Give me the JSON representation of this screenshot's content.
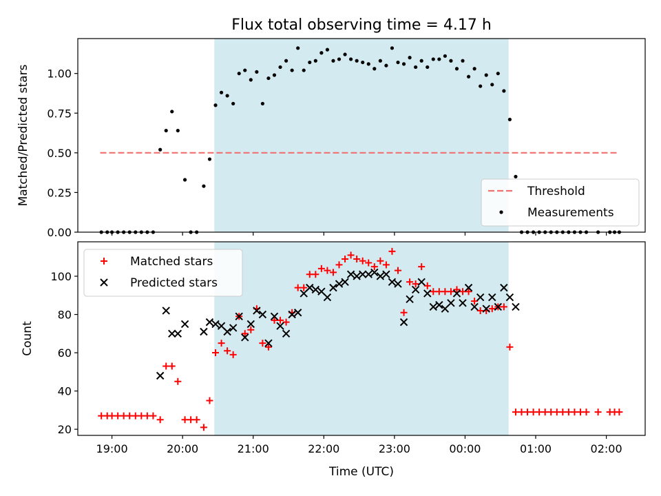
{
  "chart_data": [
    {
      "type": "scatter",
      "title": "Flux total observing time = 4.17 h",
      "xlabel": "",
      "ylabel": "Matched/Predicted stars",
      "xlim": [
        "18:31",
        "02:33"
      ],
      "ylim": [
        0,
        1.22
      ],
      "yticks": [
        "0.00",
        "0.25",
        "0.50",
        "0.75",
        "1.00"
      ],
      "shaded_interval": {
        "start": "20:27",
        "end": "00:37",
        "color": "#d3eaf0"
      },
      "threshold": {
        "name": "Threshold",
        "value": 0.5,
        "x_start": "18:50",
        "x_end": "02:10",
        "color": "#f07070"
      },
      "legend": {
        "position": "lower-right",
        "entries": [
          "Threshold",
          "Measurements"
        ]
      },
      "series": [
        {
          "name": "Measurements",
          "marker": "dot",
          "color": "#000000",
          "points": [
            [
              "18:51",
              0
            ],
            [
              "18:56",
              0
            ],
            [
              "19:00",
              0
            ],
            [
              "19:05",
              0
            ],
            [
              "19:10",
              0
            ],
            [
              "19:15",
              0
            ],
            [
              "19:20",
              0
            ],
            [
              "19:25",
              0
            ],
            [
              "19:30",
              0
            ],
            [
              "19:35",
              0
            ],
            [
              "19:41",
              0.52
            ],
            [
              "19:46",
              0.64
            ],
            [
              "19:51",
              0.76
            ],
            [
              "19:56",
              0.64
            ],
            [
              "20:02",
              0.33
            ],
            [
              "20:07",
              0
            ],
            [
              "20:12",
              0
            ],
            [
              "20:18",
              0.29
            ],
            [
              "20:23",
              0.46
            ],
            [
              "20:28",
              0.8
            ],
            [
              "20:33",
              0.88
            ],
            [
              "20:38",
              0.86
            ],
            [
              "20:43",
              0.81
            ],
            [
              "20:48",
              1.0
            ],
            [
              "20:53",
              1.02
            ],
            [
              "20:58",
              0.96
            ],
            [
              "21:03",
              1.01
            ],
            [
              "21:08",
              0.81
            ],
            [
              "21:13",
              0.97
            ],
            [
              "21:18",
              0.99
            ],
            [
              "21:23",
              1.04
            ],
            [
              "21:28",
              1.08
            ],
            [
              "21:33",
              1.02
            ],
            [
              "21:38",
              1.16
            ],
            [
              "21:43",
              1.02
            ],
            [
              "21:48",
              1.07
            ],
            [
              "21:53",
              1.08
            ],
            [
              "21:58",
              1.13
            ],
            [
              "22:03",
              1.15
            ],
            [
              "22:08",
              1.08
            ],
            [
              "22:13",
              1.09
            ],
            [
              "22:18",
              1.12
            ],
            [
              "22:23",
              1.09
            ],
            [
              "22:28",
              1.08
            ],
            [
              "22:33",
              1.07
            ],
            [
              "22:38",
              1.06
            ],
            [
              "22:43",
              1.03
            ],
            [
              "22:48",
              1.08
            ],
            [
              "22:53",
              1.05
            ],
            [
              "22:58",
              1.16
            ],
            [
              "23:03",
              1.07
            ],
            [
              "23:08",
              1.06
            ],
            [
              "23:13",
              1.1
            ],
            [
              "23:18",
              1.04
            ],
            [
              "23:23",
              1.08
            ],
            [
              "23:28",
              1.04
            ],
            [
              "23:33",
              1.09
            ],
            [
              "23:38",
              1.09
            ],
            [
              "23:43",
              1.11
            ],
            [
              "23:48",
              1.08
            ],
            [
              "23:53",
              1.03
            ],
            [
              "23:58",
              1.08
            ],
            [
              "00:03",
              0.98
            ],
            [
              "00:08",
              1.03
            ],
            [
              "00:13",
              0.92
            ],
            [
              "00:18",
              0.99
            ],
            [
              "00:23",
              0.93
            ],
            [
              "00:28",
              1.0
            ],
            [
              "00:33",
              0.89
            ],
            [
              "00:38",
              0.71
            ],
            [
              "00:43",
              0.35
            ],
            [
              "00:48",
              0
            ],
            [
              "00:53",
              0
            ],
            [
              "00:58",
              0
            ],
            [
              "01:03",
              0
            ],
            [
              "01:08",
              0
            ],
            [
              "01:13",
              0
            ],
            [
              "01:18",
              0
            ],
            [
              "01:23",
              0
            ],
            [
              "01:28",
              0
            ],
            [
              "01:33",
              0
            ],
            [
              "01:38",
              0
            ],
            [
              "01:43",
              0
            ],
            [
              "01:53",
              0
            ],
            [
              "02:03",
              0
            ],
            [
              "02:07",
              0
            ],
            [
              "02:11",
              0
            ]
          ]
        }
      ]
    },
    {
      "type": "scatter",
      "title": "",
      "xlabel": "Time (UTC)",
      "ylabel": "Count",
      "xlim": [
        "18:31",
        "02:33"
      ],
      "ylim": [
        16.8,
        118
      ],
      "yticks": [
        "20",
        "40",
        "60",
        "80",
        "100"
      ],
      "xticks": [
        "19:00",
        "20:00",
        "21:00",
        "22:00",
        "23:00",
        "00:00",
        "01:00",
        "02:00"
      ],
      "shaded_interval": {
        "start": "20:27",
        "end": "00:37",
        "color": "#d3eaf0"
      },
      "legend": {
        "position": "upper-left",
        "entries": [
          "Matched stars",
          "Predicted stars"
        ]
      },
      "series": [
        {
          "name": "Matched stars",
          "marker": "plus",
          "color": "#ff0000",
          "points": [
            [
              "18:51",
              27
            ],
            [
              "18:56",
              27
            ],
            [
              "19:00",
              27
            ],
            [
              "19:05",
              27
            ],
            [
              "19:10",
              27
            ],
            [
              "19:15",
              27
            ],
            [
              "19:20",
              27
            ],
            [
              "19:25",
              27
            ],
            [
              "19:30",
              27
            ],
            [
              "19:35",
              27
            ],
            [
              "19:41",
              25
            ],
            [
              "19:46",
              53
            ],
            [
              "19:51",
              53
            ],
            [
              "19:56",
              45
            ],
            [
              "20:02",
              25
            ],
            [
              "20:07",
              25
            ],
            [
              "20:12",
              25
            ],
            [
              "20:18",
              21
            ],
            [
              "20:23",
              35
            ],
            [
              "20:28",
              60
            ],
            [
              "20:33",
              65
            ],
            [
              "20:38",
              61
            ],
            [
              "20:43",
              59
            ],
            [
              "20:48",
              79
            ],
            [
              "20:53",
              70
            ],
            [
              "20:58",
              72
            ],
            [
              "21:03",
              83
            ],
            [
              "21:08",
              65
            ],
            [
              "21:13",
              63
            ],
            [
              "21:18",
              77
            ],
            [
              "21:23",
              77
            ],
            [
              "21:28",
              76
            ],
            [
              "21:33",
              81
            ],
            [
              "21:38",
              94
            ],
            [
              "21:43",
              94
            ],
            [
              "21:48",
              101
            ],
            [
              "21:53",
              101
            ],
            [
              "21:58",
              104
            ],
            [
              "22:03",
              103
            ],
            [
              "22:08",
              102
            ],
            [
              "22:13",
              106
            ],
            [
              "22:18",
              109
            ],
            [
              "22:23",
              111
            ],
            [
              "22:28",
              109
            ],
            [
              "22:33",
              108
            ],
            [
              "22:38",
              107
            ],
            [
              "22:43",
              105
            ],
            [
              "22:48",
              108
            ],
            [
              "22:53",
              106
            ],
            [
              "22:58",
              113
            ],
            [
              "23:03",
              103
            ],
            [
              "23:08",
              81
            ],
            [
              "23:13",
              97
            ],
            [
              "23:18",
              96
            ],
            [
              "23:23",
              105
            ],
            [
              "23:28",
              95
            ],
            [
              "23:33",
              92
            ],
            [
              "23:38",
              92
            ],
            [
              "23:43",
              92
            ],
            [
              "23:48",
              92
            ],
            [
              "23:53",
              93
            ],
            [
              "23:58",
              92
            ],
            [
              "00:03",
              92
            ],
            [
              "00:08",
              87
            ],
            [
              "00:13",
              82
            ],
            [
              "00:18",
              82
            ],
            [
              "00:23",
              83
            ],
            [
              "00:28",
              84
            ],
            [
              "00:33",
              84
            ],
            [
              "00:38",
              63
            ],
            [
              "00:43",
              29
            ],
            [
              "00:48",
              29
            ],
            [
              "00:53",
              29
            ],
            [
              "00:58",
              29
            ],
            [
              "01:03",
              29
            ],
            [
              "01:08",
              29
            ],
            [
              "01:13",
              29
            ],
            [
              "01:18",
              29
            ],
            [
              "01:23",
              29
            ],
            [
              "01:28",
              29
            ],
            [
              "01:33",
              29
            ],
            [
              "01:38",
              29
            ],
            [
              "01:43",
              29
            ],
            [
              "01:53",
              29
            ],
            [
              "02:03",
              29
            ],
            [
              "02:07",
              29
            ],
            [
              "02:11",
              29
            ]
          ]
        },
        {
          "name": "Predicted stars",
          "marker": "cross",
          "color": "#000000",
          "points": [
            [
              "19:41",
              48
            ],
            [
              "19:46",
              82
            ],
            [
              "19:51",
              70
            ],
            [
              "19:56",
              70
            ],
            [
              "20:02",
              75
            ],
            [
              "20:18",
              71
            ],
            [
              "20:23",
              76
            ],
            [
              "20:28",
              75
            ],
            [
              "20:33",
              74
            ],
            [
              "20:38",
              71
            ],
            [
              "20:43",
              73
            ],
            [
              "20:48",
              79
            ],
            [
              "20:53",
              68
            ],
            [
              "20:58",
              75
            ],
            [
              "21:03",
              82
            ],
            [
              "21:08",
              80
            ],
            [
              "21:13",
              65
            ],
            [
              "21:18",
              79
            ],
            [
              "21:23",
              74
            ],
            [
              "21:28",
              70
            ],
            [
              "21:33",
              80
            ],
            [
              "21:38",
              81
            ],
            [
              "21:43",
              91
            ],
            [
              "21:48",
              94
            ],
            [
              "21:53",
              93
            ],
            [
              "21:58",
              92
            ],
            [
              "22:03",
              89
            ],
            [
              "22:08",
              94
            ],
            [
              "22:13",
              96
            ],
            [
              "22:18",
              97
            ],
            [
              "22:23",
              101
            ],
            [
              "22:28",
              100
            ],
            [
              "22:33",
              101
            ],
            [
              "22:38",
              101
            ],
            [
              "22:43",
              102
            ],
            [
              "22:48",
              100
            ],
            [
              "22:53",
              101
            ],
            [
              "22:58",
              97
            ],
            [
              "23:03",
              96
            ],
            [
              "23:08",
              76
            ],
            [
              "23:13",
              88
            ],
            [
              "23:18",
              93
            ],
            [
              "23:23",
              97
            ],
            [
              "23:28",
              91
            ],
            [
              "23:33",
              84
            ],
            [
              "23:38",
              85
            ],
            [
              "23:43",
              83
            ],
            [
              "23:48",
              86
            ],
            [
              "23:53",
              91
            ],
            [
              "23:58",
              86
            ],
            [
              "00:03",
              94
            ],
            [
              "00:08",
              84
            ],
            [
              "00:13",
              89
            ],
            [
              "00:18",
              83
            ],
            [
              "00:23",
              89
            ],
            [
              "00:28",
              84
            ],
            [
              "00:33",
              94
            ],
            [
              "00:38",
              89
            ],
            [
              "00:43",
              84
            ]
          ]
        }
      ]
    }
  ]
}
